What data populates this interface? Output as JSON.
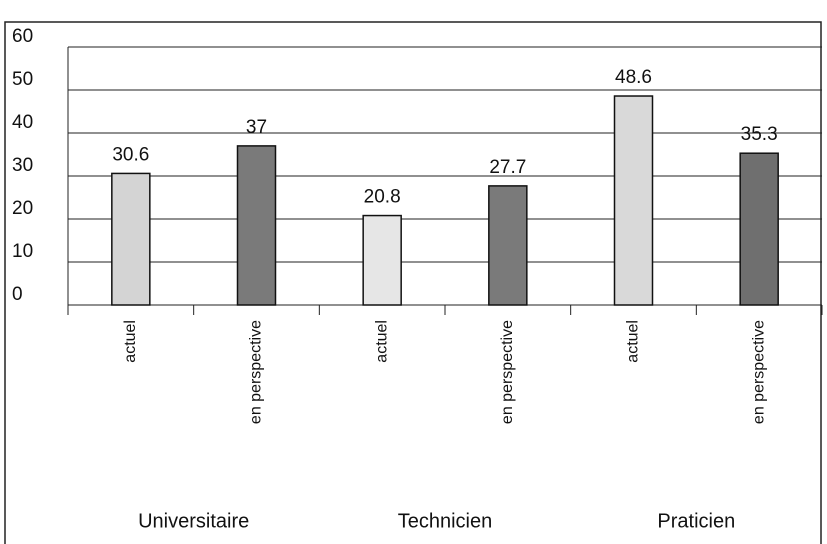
{
  "chart_data": {
    "type": "bar",
    "categories": [
      "actuel",
      "en perspective",
      "actuel",
      "en perspective",
      "actuel",
      "en perspective"
    ],
    "groups": [
      "Universitaire",
      "Technicien",
      "Praticien"
    ],
    "values": [
      30.6,
      37,
      20.8,
      27.7,
      48.6,
      35.3
    ],
    "colors": [
      "#d4d4d4",
      "#7a7a7a",
      "#e6e6e6",
      "#7a7a7a",
      "#d9d9d9",
      "#6f6f6f"
    ],
    "ylim": [
      0,
      60
    ],
    "yticks": [
      0,
      10,
      20,
      30,
      40,
      50,
      60
    ],
    "grid": true
  }
}
